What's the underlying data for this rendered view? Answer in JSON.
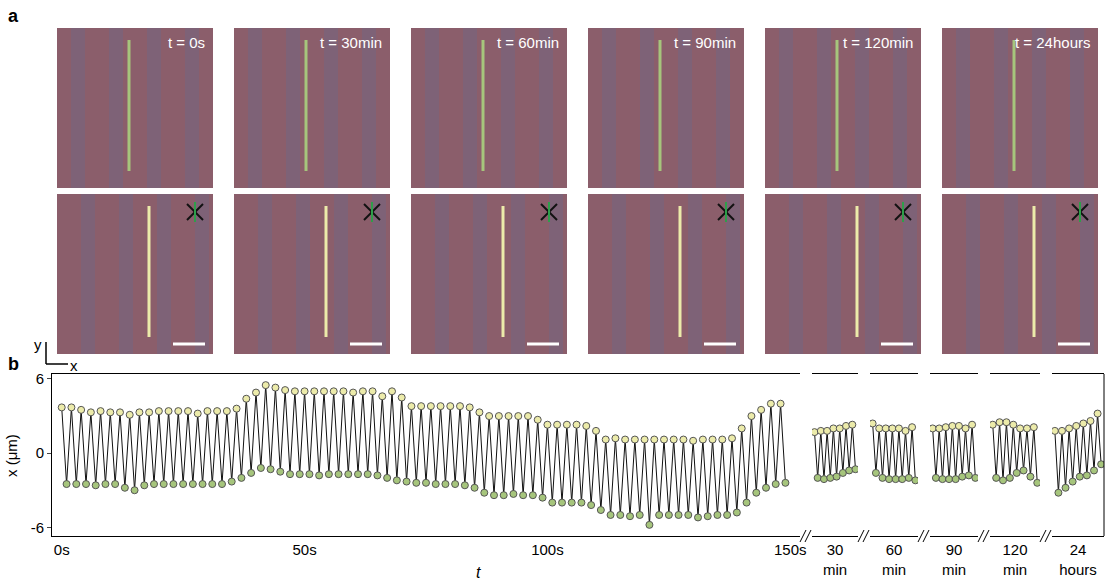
{
  "panel_a": {
    "label": "a",
    "times": [
      "t = 0s",
      "t = 30min",
      "t = 60min",
      "t = 90min",
      "t = 120min",
      "t = 24hours"
    ],
    "axes": {
      "x": "x",
      "y": "y"
    }
  },
  "chart_data": {
    "label": "b",
    "type": "line",
    "xlabel": "t",
    "ylabel": "x (μm)",
    "marker": "circle",
    "ylim": [
      -6.7,
      6.4
    ],
    "yticks": [
      -6,
      0,
      6
    ],
    "segments": [
      {
        "xlim": [
          -2,
          152
        ],
        "xticks": [
          {
            "value": 0,
            "label": "0s"
          },
          {
            "value": 50,
            "label": "50s"
          },
          {
            "value": 100,
            "label": "100s"
          },
          {
            "value": 150,
            "label": "150s"
          }
        ],
        "series": [
          {
            "color": "#ecebaa",
            "x": [
              0,
              2,
              4,
              6,
              8,
              10,
              12,
              14,
              16,
              18,
              20,
              22,
              24,
              26,
              28,
              30,
              32,
              34,
              36,
              38,
              40,
              42,
              44,
              46,
              48,
              50,
              52,
              54,
              56,
              58,
              60,
              62,
              64,
              66,
              68,
              70,
              72,
              74,
              76,
              78,
              80,
              82,
              84,
              86,
              88,
              90,
              92,
              94,
              96,
              98,
              100,
              102,
              104,
              106,
              108,
              110,
              112,
              114,
              116,
              118,
              120,
              122,
              124,
              126,
              128,
              130,
              132,
              134,
              136,
              138,
              140,
              142,
              144,
              146,
              148
            ],
            "values": [
              3.7,
              3.7,
              3.5,
              3.3,
              3.4,
              3.3,
              3.3,
              3.1,
              3.3,
              3.3,
              3.4,
              3.4,
              3.4,
              3.4,
              3.2,
              3.4,
              3.4,
              3.4,
              3.6,
              4.4,
              4.9,
              5.5,
              5.3,
              5.1,
              5.0,
              5.0,
              5.0,
              5.0,
              5.0,
              5.0,
              4.9,
              5.0,
              5.0,
              4.6,
              5.0,
              4.5,
              3.8,
              3.8,
              3.8,
              3.8,
              3.8,
              3.8,
              3.7,
              3.3,
              3.0,
              3.0,
              3.0,
              3.0,
              3.0,
              2.7,
              2.3,
              2.3,
              2.3,
              2.3,
              2.2,
              1.8,
              1.1,
              1.2,
              1.1,
              1.1,
              1.1,
              1.1,
              1.1,
              1.1,
              1.1,
              1.0,
              1.1,
              1.1,
              1.1,
              1.2,
              2.0,
              3.0,
              3.5,
              4.0,
              4.0
            ]
          },
          {
            "color": "#a6c57c",
            "x": [
              1,
              3,
              5,
              7,
              9,
              11,
              13,
              15,
              17,
              19,
              21,
              23,
              25,
              27,
              29,
              31,
              33,
              35,
              37,
              39,
              41,
              43,
              45,
              47,
              49,
              51,
              53,
              55,
              57,
              59,
              61,
              63,
              65,
              67,
              69,
              71,
              73,
              75,
              77,
              79,
              81,
              83,
              85,
              87,
              89,
              91,
              93,
              95,
              97,
              99,
              101,
              103,
              105,
              107,
              109,
              111,
              113,
              115,
              117,
              119,
              121,
              123,
              125,
              127,
              129,
              131,
              133,
              135,
              137,
              139,
              141,
              143,
              145,
              147,
              149
            ],
            "values": [
              -2.5,
              -2.5,
              -2.5,
              -2.6,
              -2.5,
              -2.5,
              -2.8,
              -3.0,
              -2.6,
              -2.5,
              -2.5,
              -2.5,
              -2.5,
              -2.5,
              -2.5,
              -2.5,
              -2.5,
              -2.3,
              -2.0,
              -1.6,
              -1.2,
              -1.3,
              -1.5,
              -1.7,
              -1.7,
              -1.7,
              -1.8,
              -1.7,
              -1.7,
              -1.7,
              -1.7,
              -1.7,
              -1.8,
              -2.0,
              -2.2,
              -2.3,
              -2.4,
              -2.4,
              -2.5,
              -2.5,
              -2.5,
              -2.6,
              -2.8,
              -3.2,
              -3.4,
              -3.4,
              -3.3,
              -3.4,
              -3.4,
              -3.6,
              -4.0,
              -4.0,
              -4.0,
              -4.0,
              -4.2,
              -4.6,
              -5.0,
              -5.0,
              -5.1,
              -5.0,
              -5.8,
              -5.0,
              -5.0,
              -5.0,
              -5.0,
              -5.2,
              -5.1,
              -5.0,
              -5.0,
              -4.8,
              -4.0,
              -3.2,
              -2.8,
              -2.5,
              -2.4
            ]
          }
        ]
      },
      {
        "xlim": [
          -0.8,
          13.8
        ],
        "xticks": [
          {
            "value": 6.5,
            "label": "30 min"
          }
        ],
        "series": [
          {
            "color": "#ecebaa",
            "x": [
              0,
              2,
              4,
              6,
              8,
              10,
              12
            ],
            "values": [
              1.7,
              1.8,
              1.8,
              2.0,
              2.0,
              2.2,
              2.3
            ]
          },
          {
            "color": "#a6c57c",
            "x": [
              1,
              3,
              5,
              7,
              9,
              11,
              13
            ],
            "values": [
              -2.0,
              -2.1,
              -2.0,
              -1.9,
              -1.6,
              -1.4,
              -1.3
            ]
          }
        ]
      },
      {
        "xlim": [
          -0.8,
          13.8
        ],
        "xticks": [
          {
            "value": 6.5,
            "label": "60 min"
          }
        ],
        "series": [
          {
            "color": "#ecebaa",
            "x": [
              0,
              2,
              4,
              6,
              8,
              10,
              12
            ],
            "values": [
              2.4,
              2.0,
              2.0,
              2.0,
              2.0,
              1.8,
              2.1
            ]
          },
          {
            "color": "#a6c57c",
            "x": [
              1,
              3,
              5,
              7,
              9,
              11,
              13
            ],
            "values": [
              -1.6,
              -2.0,
              -2.1,
              -2.1,
              -2.1,
              -2.0,
              -2.2
            ]
          }
        ]
      },
      {
        "xlim": [
          -0.8,
          13.8
        ],
        "xticks": [
          {
            "value": 6.5,
            "label": "90 min"
          }
        ],
        "series": [
          {
            "color": "#ecebaa",
            "x": [
              0,
              2,
              4,
              6,
              8,
              10,
              12
            ],
            "values": [
              2.0,
              2.0,
              2.1,
              2.2,
              2.2,
              2.0,
              2.3
            ]
          },
          {
            "color": "#a6c57c",
            "x": [
              1,
              3,
              5,
              7,
              9,
              11,
              13
            ],
            "values": [
              -2.0,
              -2.1,
              -2.1,
              -2.1,
              -1.9,
              -1.8,
              -2.0
            ]
          }
        ]
      },
      {
        "xlim": [
          -0.8,
          13.8
        ],
        "xticks": [
          {
            "value": 6.5,
            "label": "120 min"
          }
        ],
        "series": [
          {
            "color": "#ecebaa",
            "x": [
              0,
              2,
              4,
              6,
              8,
              10,
              12
            ],
            "values": [
              2.3,
              2.5,
              2.5,
              2.3,
              2.0,
              2.0,
              2.1
            ]
          },
          {
            "color": "#a6c57c",
            "x": [
              1,
              3,
              5,
              7,
              9,
              11,
              13
            ],
            "values": [
              -2.0,
              -2.2,
              -2.0,
              -1.6,
              -1.4,
              -1.9,
              -2.4
            ]
          }
        ]
      },
      {
        "xlim": [
          -0.8,
          13.8
        ],
        "xticks": [
          {
            "value": 6.5,
            "label": "24 hours"
          }
        ],
        "series": [
          {
            "color": "#ecebaa",
            "x": [
              0,
              2,
              4,
              6,
              8,
              10,
              12
            ],
            "values": [
              1.8,
              1.8,
              2.0,
              2.2,
              2.4,
              2.6,
              3.2
            ]
          },
          {
            "color": "#a6c57c",
            "x": [
              1,
              3,
              5,
              7,
              9,
              11,
              13
            ],
            "values": [
              -3.2,
              -2.8,
              -2.3,
              -1.9,
              -1.8,
              -1.4,
              -0.9
            ]
          }
        ]
      }
    ]
  }
}
